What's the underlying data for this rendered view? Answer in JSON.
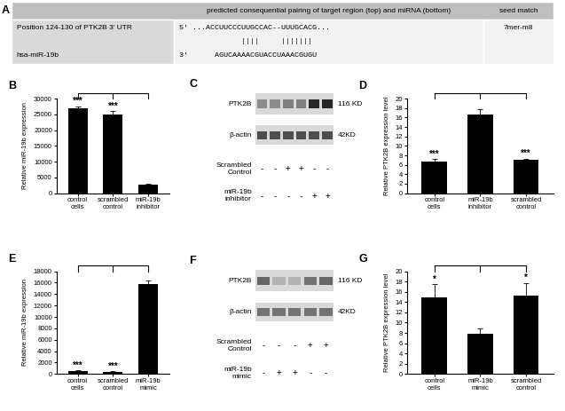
{
  "panel_a": {
    "letter": "A",
    "header": [
      "predicted consequential pairing of target region (top) and miRNA (bottom)",
      "seed match"
    ],
    "target_label": "Position 124-130 of PTK2B 3' UTR",
    "mirna_label": "hsa-miR-19b",
    "alignment": [
      "5' ...ACCUUCCCUUGCCAC--UUUGCACG...",
      "              ||||     |||||||",
      "3'      AGUCAAAACGUACCUAAACGUGU"
    ],
    "seed_match": "7mer-m8"
  },
  "blots": [
    {
      "letter": "C",
      "bands": [
        {
          "name": "PTK2B",
          "size": "116 KD",
          "intensity": [
            0.45,
            0.45,
            0.5,
            0.5,
            0.85,
            0.85
          ]
        },
        {
          "name": "β-actin",
          "size": "42KD",
          "intensity": [
            0.7,
            0.7,
            0.7,
            0.7,
            0.7,
            0.7
          ]
        }
      ],
      "treatments": [
        {
          "name": "Scrambled Control",
          "signs": [
            "-",
            "-",
            "+",
            "+",
            "-",
            "-"
          ]
        },
        {
          "name": "miR-19b inhibitor",
          "signs": [
            "-",
            "-",
            "-",
            "-",
            "+",
            "+"
          ]
        }
      ]
    },
    {
      "letter": "F",
      "bands": [
        {
          "name": "PTK2B",
          "size": "116 KD",
          "intensity": [
            0.6,
            0.3,
            0.3,
            0.55,
            0.6
          ]
        },
        {
          "name": "β-actin",
          "size": "42KD",
          "intensity": [
            0.55,
            0.55,
            0.55,
            0.55,
            0.55
          ]
        }
      ],
      "treatments": [
        {
          "name": "Scrambled Control",
          "signs": [
            "-",
            "-",
            "-",
            "+",
            "+"
          ]
        },
        {
          "name": "miR-19b mimic",
          "signs": [
            "-",
            "+",
            "+",
            "-",
            "-"
          ]
        }
      ]
    }
  ],
  "chart_data": [
    {
      "type": "bar",
      "panel": "B",
      "y_label": "Relative miR-19b expression",
      "categories": [
        "control cells",
        "scrambled control",
        "miR-19b inhibitor"
      ],
      "values": [
        26800,
        25000,
        2800
      ],
      "errors": [
        800,
        1000,
        300
      ],
      "color": "#000000",
      "ylim": [
        0,
        30000
      ],
      "yticks": [
        0,
        5000,
        10000,
        15000,
        20000,
        25000,
        30000
      ],
      "annotations": [
        {
          "index": 0,
          "text": "***"
        },
        {
          "index": 1,
          "text": "***"
        }
      ],
      "comparisons": [
        [
          0,
          2
        ],
        [
          1,
          2
        ]
      ]
    },
    {
      "type": "bar",
      "panel": "D",
      "y_label": "Relative PTK2B expression level",
      "categories": [
        "control cells",
        "miR-19b inhibitor",
        "scrambled control"
      ],
      "values": [
        6.7,
        16.7,
        7.0
      ],
      "errors": [
        0.5,
        1.0,
        0.3
      ],
      "color": "#000000",
      "ylim": [
        0,
        20
      ],
      "yticks": [
        0,
        2,
        4,
        6,
        8,
        10,
        12,
        14,
        16,
        18,
        20
      ],
      "annotations": [
        {
          "index": 0,
          "text": "***"
        },
        {
          "index": 2,
          "text": "***"
        }
      ],
      "comparisons": [
        [
          1,
          0
        ],
        [
          1,
          2
        ]
      ]
    },
    {
      "type": "bar",
      "panel": "E",
      "y_label": "Relative miR-19b expression",
      "categories": [
        "control cells",
        "scrambled control",
        "miR-19b mimic"
      ],
      "values": [
        500,
        400,
        15700
      ],
      "errors": [
        100,
        100,
        700
      ],
      "color": "#000000",
      "ylim": [
        0,
        18000
      ],
      "yticks": [
        0,
        2000,
        4000,
        6000,
        8000,
        10000,
        12000,
        14000,
        16000,
        18000
      ],
      "annotations": [
        {
          "index": 0,
          "text": "***"
        },
        {
          "index": 1,
          "text": "***"
        }
      ],
      "comparisons": [
        [
          2,
          0
        ],
        [
          2,
          1
        ]
      ]
    },
    {
      "type": "bar",
      "panel": "G",
      "y_label": "Relative PTK2B expression level",
      "categories": [
        "control cells",
        "miR-19b mimic",
        "scrambled control"
      ],
      "values": [
        15.0,
        7.8,
        15.2
      ],
      "errors": [
        2.5,
        1.0,
        2.5
      ],
      "color": "#000000",
      "ylim": [
        0,
        20
      ],
      "yticks": [
        0,
        2,
        4,
        6,
        8,
        10,
        12,
        14,
        16,
        18,
        20
      ],
      "annotations": [
        {
          "index": 0,
          "text": "*"
        },
        {
          "index": 2,
          "text": "*"
        }
      ],
      "comparisons": [
        [
          1,
          0
        ],
        [
          1,
          2
        ]
      ]
    }
  ]
}
